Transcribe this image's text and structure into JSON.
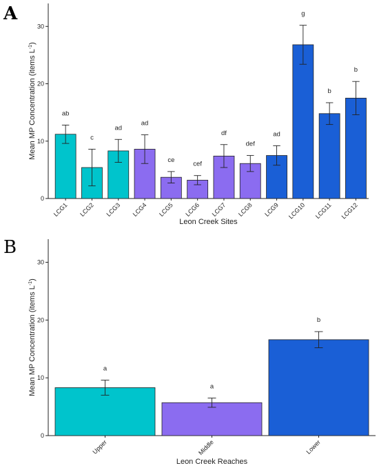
{
  "chart_data": [
    {
      "panel": "A",
      "type": "bar",
      "xlabel": "Leon Creek Sites",
      "ylabel": "Mean MP Concentration (items L",
      "ylabel_sup": "-1",
      "ylabel_close": ")",
      "ylim": [
        0,
        34
      ],
      "yticks": [
        0,
        10,
        20,
        30
      ],
      "grid": false,
      "categories": [
        "LCG1",
        "LCG2",
        "LCG3",
        "LCG4",
        "LCG5",
        "LCG6",
        "LCG7",
        "LCG8",
        "LCG9",
        "LCG10",
        "LCG11",
        "LCG12"
      ],
      "values": [
        11.2,
        5.4,
        8.3,
        8.6,
        3.7,
        3.2,
        7.4,
        6.1,
        7.5,
        26.8,
        14.8,
        17.5
      ],
      "errors": [
        1.6,
        3.2,
        2.0,
        2.5,
        1.0,
        0.8,
        2.0,
        1.4,
        1.7,
        3.4,
        1.9,
        2.9
      ],
      "letters": [
        "ab",
        "c",
        "ad",
        "ad",
        "ce",
        "cef",
        "df",
        "def",
        "ad",
        "g",
        "b",
        "b"
      ],
      "bar_colors": [
        "#00c4cc",
        "#00c4cc",
        "#00c4cc",
        "#8b6cf0",
        "#8b6cf0",
        "#8b6cf0",
        "#8b6cf0",
        "#8b6cf0",
        "#1a5fd6",
        "#1a5fd6",
        "#1a5fd6",
        "#1a5fd6"
      ]
    },
    {
      "panel": "B",
      "type": "bar",
      "xlabel": "Leon Creek Reaches",
      "ylabel": "Mean MP Concentration (items L",
      "ylabel_sup": "-1",
      "ylabel_close": ")",
      "ylim": [
        0,
        34
      ],
      "yticks": [
        0,
        10,
        20,
        30
      ],
      "grid": false,
      "categories": [
        "Upper",
        "Middle",
        "Lower"
      ],
      "values": [
        8.3,
        5.7,
        16.6
      ],
      "errors": [
        1.3,
        0.8,
        1.4
      ],
      "letters": [
        "a",
        "a",
        "b"
      ],
      "bar_colors": [
        "#00c4cc",
        "#8b6cf0",
        "#1a5fd6"
      ]
    }
  ]
}
